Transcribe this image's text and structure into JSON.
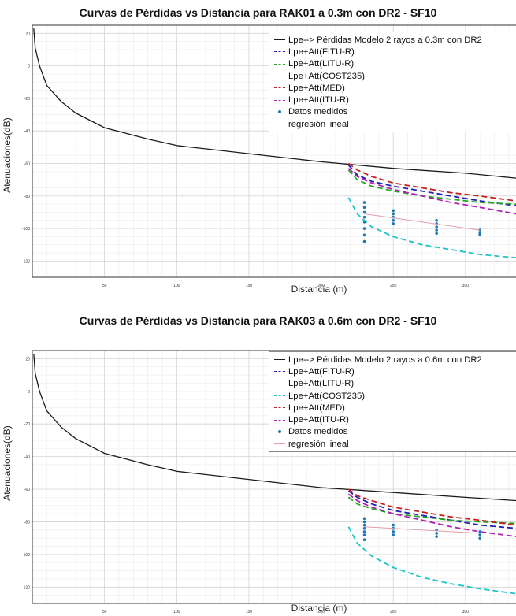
{
  "chart_data": [
    {
      "type": "line",
      "title": "Curvas de Pérdidas vs Distancia para RAK01 a 0.3m con DR2 - SF10",
      "xlabel": "Distancia (m)",
      "ylabel": "Atenuaciones(dB)",
      "xlim": [
        0,
        335
      ],
      "ylim": [
        -130,
        25
      ],
      "xticks": [
        50,
        100,
        150,
        200,
        250,
        300
      ],
      "yticks": [
        20,
        0,
        -20,
        -40,
        -60,
        -80,
        -100,
        -120
      ],
      "grid": true,
      "legend_position": "top-right",
      "series": [
        {
          "name": "Lpe--> Pérdidas Modelo 2 rayos a 0.3m con DR2",
          "color": "#1a1a1a",
          "style": "solid",
          "x": [
            1,
            2,
            5,
            10,
            20,
            30,
            50,
            80,
            100,
            150,
            200,
            250,
            300,
            335
          ],
          "y": [
            23,
            11,
            0,
            -12,
            -22,
            -29,
            -38,
            -45,
            -49,
            -54,
            -59,
            -63,
            -66,
            -69
          ]
        },
        {
          "name": "Lpe+Att(FITU-R)",
          "color": "#1f1fb5",
          "style": "dashed",
          "x": [
            219,
            225,
            235,
            250,
            270,
            290,
            310,
            335
          ],
          "y": [
            -61,
            -67,
            -71,
            -74,
            -77,
            -80,
            -83,
            -86
          ]
        },
        {
          "name": "Lpe+Att(LITU-R)",
          "color": "#22a822",
          "style": "dashed",
          "x": [
            219,
            225,
            235,
            250,
            270,
            290,
            310,
            335
          ],
          "y": [
            -64,
            -70,
            -74,
            -77,
            -80,
            -82,
            -84,
            -85
          ]
        },
        {
          "name": "Lpe+Att(COST235)",
          "color": "#1fc4c4",
          "style": "dashed",
          "x": [
            219,
            225,
            235,
            250,
            270,
            290,
            310,
            335
          ],
          "y": [
            -81,
            -91,
            -99,
            -105,
            -110,
            -113,
            -116,
            -118
          ]
        },
        {
          "name": "Lpe+Att(MED)",
          "color": "#c81e1e",
          "style": "dashed",
          "x": [
            219,
            225,
            235,
            250,
            270,
            290,
            310,
            335
          ],
          "y": [
            -60,
            -64,
            -68,
            -72,
            -75,
            -78,
            -80,
            -83
          ]
        },
        {
          "name": "Lpe+Att(ITU-R)",
          "color": "#b51fb5",
          "style": "dashed",
          "x": [
            219,
            225,
            235,
            250,
            270,
            290,
            310,
            335
          ],
          "y": [
            -63,
            -68,
            -72,
            -76,
            -80,
            -84,
            -87,
            -91
          ]
        },
        {
          "name": "Datos medidos",
          "color": "#1f77b4",
          "style": "markers",
          "x": [
            230,
            230,
            230,
            230,
            230,
            230,
            230,
            230,
            250,
            250,
            250,
            250,
            250,
            280,
            280,
            280,
            280,
            280,
            310,
            310,
            310
          ],
          "y": [
            -84,
            -87,
            -90,
            -93,
            -96,
            -100,
            -104,
            -108,
            -89,
            -91,
            -93,
            -95,
            -97,
            -95,
            -97,
            -99,
            -101,
            -103,
            -101,
            -103,
            -104
          ]
        },
        {
          "name": "regresión lineal",
          "color": "#e0a0a8",
          "style": "solid",
          "x": [
            230,
            310
          ],
          "y": [
            -91,
            -101
          ]
        }
      ]
    },
    {
      "type": "line",
      "title": "Curvas de Pérdidas vs Distancia para RAK03 a 0.6m con DR2 - SF10",
      "xlabel": "Distancia (m)",
      "ylabel": "Atenuaciones(dB)",
      "xlim": [
        0,
        335
      ],
      "ylim": [
        -130,
        25
      ],
      "xticks": [
        50,
        100,
        150,
        200,
        250,
        300
      ],
      "yticks": [
        20,
        0,
        -20,
        -40,
        -60,
        -80,
        -100,
        -120
      ],
      "grid": true,
      "legend_position": "top-right",
      "series": [
        {
          "name": "Lpe--> Pérdidas Modelo 2 rayos a 0.6m con DR2",
          "color": "#1a1a1a",
          "style": "solid",
          "x": [
            1,
            2,
            5,
            10,
            20,
            30,
            50,
            80,
            100,
            150,
            200,
            250,
            300,
            335
          ],
          "y": [
            23,
            11,
            0,
            -12,
            -22,
            -29,
            -38,
            -45,
            -49,
            -54,
            -59,
            -62,
            -65,
            -67
          ]
        },
        {
          "name": "Lpe+Att(FITU-R)",
          "color": "#1f1fb5",
          "style": "dashed",
          "x": [
            219,
            225,
            235,
            250,
            270,
            290,
            310,
            335
          ],
          "y": [
            -61,
            -65,
            -69,
            -73,
            -76,
            -79,
            -82,
            -84
          ]
        },
        {
          "name": "Lpe+Att(LITU-R)",
          "color": "#22a822",
          "style": "dashed",
          "x": [
            219,
            225,
            235,
            250,
            270,
            290,
            310,
            335
          ],
          "y": [
            -65,
            -69,
            -72,
            -75,
            -77,
            -79,
            -80,
            -81
          ]
        },
        {
          "name": "Lpe+Att(COST235)",
          "color": "#1fc4c4",
          "style": "dashed",
          "x": [
            219,
            225,
            235,
            250,
            270,
            290,
            310,
            335
          ],
          "y": [
            -83,
            -93,
            -101,
            -108,
            -114,
            -118,
            -121,
            -124
          ]
        },
        {
          "name": "Lpe+Att(MED)",
          "color": "#c81e1e",
          "style": "dashed",
          "x": [
            219,
            225,
            235,
            250,
            270,
            290,
            310,
            335
          ],
          "y": [
            -60,
            -64,
            -67,
            -71,
            -74,
            -77,
            -79,
            -82
          ]
        },
        {
          "name": "Lpe+Att(ITU-R)",
          "color": "#b51fb5",
          "style": "dashed",
          "x": [
            219,
            225,
            235,
            250,
            270,
            290,
            310,
            335
          ],
          "y": [
            -63,
            -67,
            -71,
            -75,
            -79,
            -83,
            -86,
            -89
          ]
        },
        {
          "name": "Datos medidos",
          "color": "#1f77b4",
          "style": "markers",
          "x": [
            230,
            230,
            230,
            230,
            230,
            230,
            230,
            250,
            250,
            250,
            250,
            280,
            280,
            280,
            310,
            310,
            310
          ],
          "y": [
            -78,
            -80,
            -82,
            -84,
            -86,
            -88,
            -91,
            -82,
            -84,
            -86,
            -88,
            -85,
            -87,
            -89,
            -86,
            -88,
            -90
          ]
        },
        {
          "name": "regresión lineal",
          "color": "#e0a0a8",
          "style": "solid",
          "x": [
            230,
            310
          ],
          "y": [
            -83,
            -87
          ]
        }
      ]
    }
  ]
}
